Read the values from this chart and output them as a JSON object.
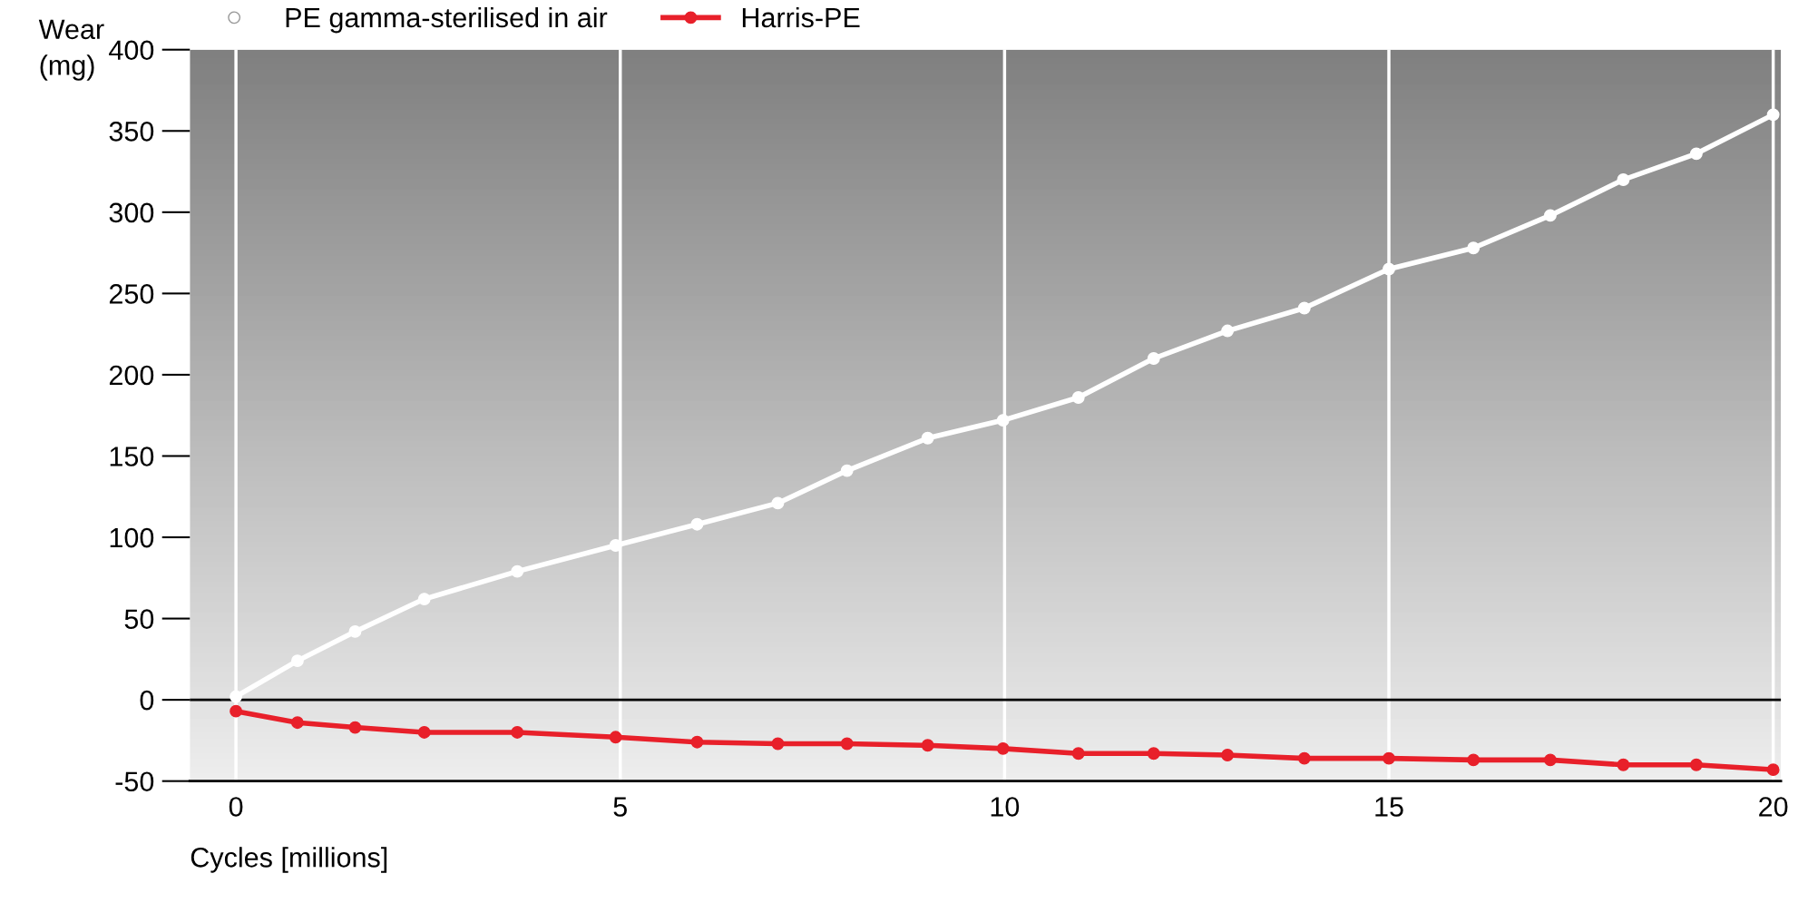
{
  "chart_data": {
    "type": "line",
    "xlabel": "Cycles [millions]",
    "ylabel": "Wear\n(mg)",
    "x": [
      0,
      0.8,
      1.55,
      2.45,
      3.66,
      4.94,
      6.0,
      7.05,
      7.95,
      9.0,
      9.98,
      10.96,
      11.94,
      12.9,
      13.9,
      15.0,
      16.1,
      17.1,
      18.05,
      19.0,
      20
    ],
    "series": [
      {
        "name": "PE gamma-sterilised in air",
        "color": "#ffffff",
        "values": [
          2,
          24,
          42,
          62,
          79,
          95,
          108,
          121,
          141,
          161,
          172,
          186,
          210,
          227,
          241,
          265,
          278,
          298,
          320,
          336,
          360
        ]
      },
      {
        "name": "Harris-PE",
        "color": "#e8202a",
        "values": [
          -7,
          -14,
          -17,
          -20,
          -20,
          -23,
          -26,
          -27,
          -27,
          -28,
          -30,
          -33,
          -33,
          -34,
          -36,
          -36,
          -37,
          -37,
          -40,
          -40,
          -43
        ]
      }
    ],
    "xlim": [
      -0.6,
      20.1
    ],
    "xticks": [
      0,
      5,
      10,
      15,
      20
    ],
    "ylim": [
      -50,
      400
    ],
    "yticks": [
      {
        "value": -50,
        "label": "-50"
      },
      0,
      50,
      100,
      150,
      200,
      250,
      300,
      350,
      400
    ],
    "ref_lines": [
      {
        "axis": "y",
        "value": 0,
        "color": "#000000"
      }
    ],
    "grid": "x",
    "legend": "top left",
    "marker": "circle",
    "line_style": "solid"
  }
}
